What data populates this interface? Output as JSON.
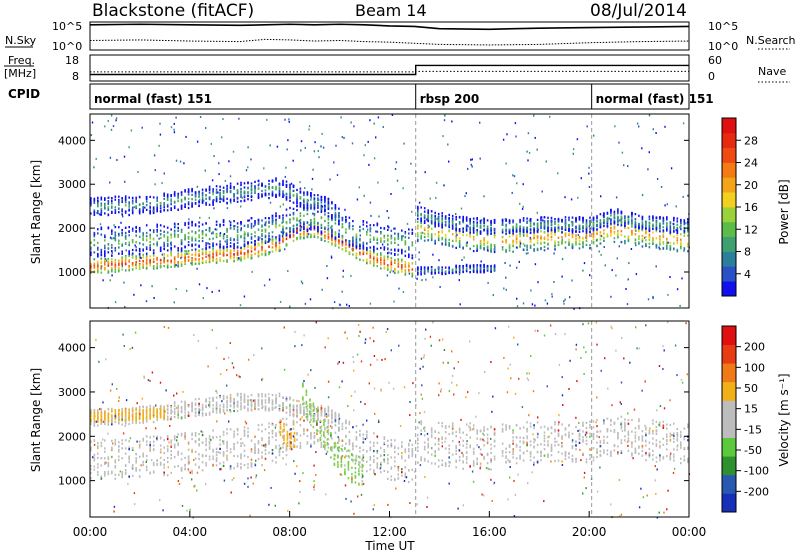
{
  "header": {
    "station": "Blackstone (fitACF)",
    "beam": "Beam 14",
    "date": "08/Jul/2014"
  },
  "chart_data": [
    {
      "type": "line",
      "name": "noise_panel",
      "left_label": "N.Sky",
      "right_label": "N.Search",
      "left_ticks": [
        "10^5",
        "10^0"
      ],
      "right_ticks": [
        "10^5",
        "10^0"
      ],
      "ylim": [
        0,
        5
      ],
      "x": [
        0,
        2,
        4,
        6,
        7,
        8,
        9,
        10,
        11,
        12,
        13,
        14,
        16,
        18,
        20,
        22,
        24
      ],
      "series": [
        {
          "name": "N.Sky",
          "values": [
            4.5,
            4.6,
            4.5,
            4.4,
            4.5,
            4.6,
            4.5,
            4.6,
            4.5,
            4.3,
            4.2,
            3.8,
            3.7,
            3.9,
            4.0,
            4.1,
            4.2
          ]
        },
        {
          "name": "N.Search",
          "values": [
            1.7,
            1.8,
            1.6,
            1.5,
            1.9,
            1.8,
            1.6,
            1.7,
            1.5,
            1.4,
            1.2,
            1.0,
            0.9,
            1.0,
            1.3,
            1.5,
            1.6
          ]
        }
      ]
    },
    {
      "type": "line",
      "name": "frequency_panel",
      "left_label_lines": [
        "Freq.",
        "[MHz]"
      ],
      "right_label": "Nave",
      "left_ticks": [
        "18",
        "8"
      ],
      "right_ticks": [
        "60",
        "0"
      ],
      "ylim": [
        8,
        18
      ],
      "x": [
        0,
        13.05,
        13.05,
        24
      ],
      "series": [
        {
          "name": "Freq",
          "values": [
            10.5,
            10.5,
            14.0,
            14.0
          ]
        },
        {
          "name": "Nave",
          "values": [
            11.5,
            11.5,
            11.7,
            11.7
          ]
        }
      ]
    },
    {
      "type": "table",
      "name": "cpid_panel",
      "label": "CPID",
      "segments": [
        {
          "start": 0,
          "end": 13.05,
          "text": "normal (fast) 151"
        },
        {
          "start": 13.05,
          "end": 20.1,
          "text": "rbsp 200"
        },
        {
          "start": 20.1,
          "end": 24,
          "text": "normal (fast) 151"
        }
      ]
    },
    {
      "type": "heatmap",
      "name": "power",
      "ylabel": "Slant Range [km]",
      "ylim": [
        180,
        4600
      ],
      "yticks": [
        1000,
        2000,
        3000,
        4000
      ],
      "xlim": [
        0,
        24
      ],
      "colorbar": {
        "label": "Power [dB]",
        "ticks": [
          "4",
          "8",
          "12",
          "16",
          "20",
          "24",
          "28"
        ],
        "colors": [
          "#1010ee",
          "#2a50c8",
          "#2c7f9a",
          "#3ea070",
          "#5cbc4a",
          "#9ad23a",
          "#f2d020",
          "#f4a418",
          "#f47a14",
          "#ee4a12",
          "#e62a10",
          "#e01010"
        ]
      },
      "bands": [
        {
          "x": [
            0,
            2,
            4,
            6,
            7.5,
            8.3,
            9,
            10,
            11,
            12,
            13
          ],
          "center": [
            1150,
            1250,
            1350,
            1450,
            1650,
            1950,
            2000,
            1700,
            1400,
            1200,
            1080
          ],
          "width": 160,
          "level": 0.92
        },
        {
          "x": [
            0,
            2,
            4,
            6,
            7.5,
            8.5,
            9.5,
            10.5,
            12,
            13
          ],
          "center": [
            1700,
            1750,
            1850,
            1900,
            2050,
            2300,
            2200,
            1900,
            1750,
            1650
          ],
          "width": 300,
          "level": 0.45
        },
        {
          "x": [
            0,
            2,
            4,
            6,
            7.5,
            8.5,
            9.5,
            10
          ],
          "center": [
            2500,
            2550,
            2700,
            2850,
            2950,
            2700,
            2500,
            2300
          ],
          "width": 200,
          "level": 0.38
        },
        {
          "x": [
            13.1,
            14,
            15,
            16.2
          ],
          "center": [
            2000,
            1950,
            1800,
            1750
          ],
          "width": 260,
          "level": 0.7
        },
        {
          "x": [
            13.1,
            14,
            15,
            16.2
          ],
          "center": [
            2350,
            2200,
            2100,
            2050
          ],
          "width": 160,
          "level": 0.35
        },
        {
          "x": [
            13.1,
            14,
            15,
            16.2
          ],
          "center": [
            1050,
            1050,
            1100,
            1100
          ],
          "width": 80,
          "level": 0.35
        },
        {
          "x": [
            16.5,
            18,
            20,
            21,
            22,
            23,
            24
          ],
          "center": [
            1750,
            1800,
            1850,
            2000,
            1900,
            1800,
            1750
          ],
          "width": 260,
          "level": 0.75
        },
        {
          "x": [
            16.5,
            18,
            20,
            21,
            22,
            24
          ],
          "center": [
            2050,
            2100,
            2100,
            2300,
            2150,
            2050
          ],
          "width": 160,
          "level": 0.4
        }
      ]
    },
    {
      "type": "heatmap",
      "name": "velocity",
      "ylabel": "Slant Range [km]",
      "xlabel": "Time UT",
      "ylim": [
        180,
        4600
      ],
      "yticks": [
        1000,
        2000,
        3000,
        4000
      ],
      "xlim": [
        0,
        24
      ],
      "xticks": [
        "00:00",
        "04:00",
        "08:00",
        "12:00",
        "16:00",
        "20:00",
        "00:00"
      ],
      "colorbar": {
        "label": "Velocity [m s⁻¹]",
        "ticks": [
          "200",
          "100",
          "50",
          "15",
          "-15",
          "-50",
          "-100",
          "-200"
        ],
        "colors": [
          "#1830b8",
          "#2858b0",
          "#2f9030",
          "#5cc83c",
          "#bdbdbd",
          "#bdbdbd",
          "#f2b018",
          "#f07a18",
          "#e83c14",
          "#e01010"
        ]
      },
      "bands": [
        {
          "x": [
            0,
            2,
            4,
            6,
            7.5,
            8.3,
            9,
            10,
            11,
            12,
            13
          ],
          "center": [
            1500,
            1550,
            1650,
            1750,
            1900,
            2200,
            2250,
            2000,
            1700,
            1500,
            1400
          ],
          "width": 420,
          "color": "#bdbdbd"
        },
        {
          "x": [
            0,
            2,
            4,
            6,
            7.5,
            8.5,
            9.5,
            10
          ],
          "center": [
            2450,
            2500,
            2650,
            2800,
            2800,
            2600,
            2500,
            2300
          ],
          "width": 180,
          "color": "#bdbdbd"
        },
        {
          "x": [
            8.5,
            9,
            9.5,
            10,
            10.5,
            11
          ],
          "center": [
            2900,
            2400,
            1900,
            1500,
            1300,
            1200
          ],
          "width": 300,
          "color": "#7ad04a"
        },
        {
          "x": [
            13.1,
            14,
            15,
            16.2
          ],
          "center": [
            1900,
            1850,
            1800,
            1750
          ],
          "width": 480,
          "color": "#bdbdbd"
        },
        {
          "x": [
            16.5,
            18,
            20,
            21,
            22,
            24
          ],
          "center": [
            1850,
            1900,
            1900,
            2050,
            1950,
            1850
          ],
          "width": 420,
          "color": "#bdbdbd"
        },
        {
          "x": [
            0,
            1,
            2,
            3
          ],
          "center": [
            2450,
            2500,
            2500,
            2550
          ],
          "width": 120,
          "color": "#f2b018"
        },
        {
          "x": [
            7.6,
            7.9,
            8.2
          ],
          "center": [
            2200,
            2000,
            1900
          ],
          "width": 220,
          "color": "#f2b018"
        }
      ]
    }
  ],
  "colors": {
    "frame": "#000000",
    "grid_dash": "#9a9a9a"
  }
}
